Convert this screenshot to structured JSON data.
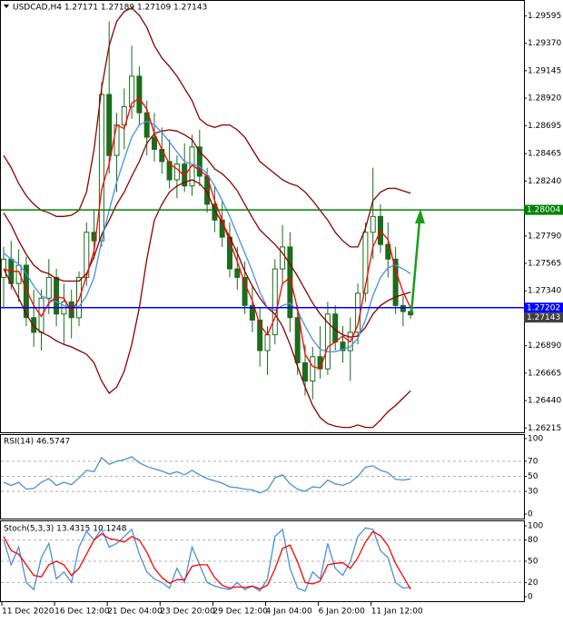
{
  "chart_data": [
    {
      "type": "candlestick",
      "title": "USDCAD,H4  1.27171 1.27189 1.27109 1.27143",
      "x": [
        "11 Dec 2020",
        null,
        null,
        null,
        null,
        null,
        null,
        "16 Dec 12:00",
        null,
        null,
        null,
        null,
        null,
        null,
        "21 Dec 04:00",
        null,
        null,
        null,
        null,
        null,
        null,
        "23 Dec 20:00",
        null,
        null,
        null,
        null,
        null,
        null,
        "29 Dec 12:00",
        null,
        null,
        null,
        null,
        null,
        null,
        "4 Jan 04:00",
        null,
        null,
        null,
        null,
        null,
        null,
        "6 Jan 20:00",
        null,
        null,
        null,
        null,
        null,
        null,
        "11 Jan 12:00",
        null,
        null,
        null,
        null,
        null
      ],
      "ohlc": [
        [
          1.2745,
          1.277,
          1.272,
          1.276
        ],
        [
          1.276,
          1.2775,
          1.2735,
          1.274
        ],
        [
          1.274,
          1.2768,
          1.2725,
          1.2755
        ],
        [
          1.2755,
          1.2762,
          1.2705,
          1.2712
        ],
        [
          1.2712,
          1.2735,
          1.2688,
          1.27
        ],
        [
          1.27,
          1.2735,
          1.2685,
          1.2728
        ],
        [
          1.2728,
          1.276,
          1.2715,
          1.2745
        ],
        [
          1.2745,
          1.2752,
          1.2705,
          1.2715
        ],
        [
          1.2715,
          1.274,
          1.269,
          1.2725
        ],
        [
          1.2725,
          1.2735,
          1.2695,
          1.2712
        ],
        [
          1.2712,
          1.275,
          1.2705,
          1.2745
        ],
        [
          1.2745,
          1.279,
          1.2738,
          1.2782
        ],
        [
          1.2782,
          1.28,
          1.276,
          1.2775
        ],
        [
          1.2775,
          1.2905,
          1.277,
          1.2895
        ],
        [
          1.2895,
          1.2955,
          1.283,
          1.2845
        ],
        [
          1.2845,
          1.288,
          1.2815,
          1.287
        ],
        [
          1.287,
          1.29,
          1.285,
          1.2885
        ],
        [
          1.2885,
          1.2935,
          1.2875,
          1.291
        ],
        [
          1.291,
          1.2918,
          1.287,
          1.288
        ],
        [
          1.288,
          1.289,
          1.2845,
          1.286
        ],
        [
          1.286,
          1.288,
          1.284,
          1.285
        ],
        [
          1.285,
          1.2868,
          1.283,
          1.284
        ],
        [
          1.284,
          1.2858,
          1.2818,
          1.2825
        ],
        [
          1.2825,
          1.2845,
          1.281,
          1.2838
        ],
        [
          1.2838,
          1.2855,
          1.2815,
          1.282
        ],
        [
          1.282,
          1.2862,
          1.2812,
          1.2852
        ],
        [
          1.2852,
          1.2866,
          1.282,
          1.2828
        ],
        [
          1.2828,
          1.2835,
          1.2798,
          1.2805
        ],
        [
          1.2805,
          1.282,
          1.2782,
          1.2792
        ],
        [
          1.2792,
          1.2808,
          1.277,
          1.2778
        ],
        [
          1.2778,
          1.279,
          1.2745,
          1.2752
        ],
        [
          1.2752,
          1.277,
          1.2735,
          1.2745
        ],
        [
          1.2745,
          1.2758,
          1.2715,
          1.2722
        ],
        [
          1.2722,
          1.2738,
          1.27,
          1.271
        ],
        [
          1.271,
          1.272,
          1.2672,
          1.2685
        ],
        [
          1.2685,
          1.2705,
          1.2665,
          1.2698
        ],
        [
          1.2698,
          1.276,
          1.269,
          1.2752
        ],
        [
          1.2752,
          1.2788,
          1.274,
          1.277
        ],
        [
          1.277,
          1.2782,
          1.27,
          1.2712
        ],
        [
          1.2712,
          1.2722,
          1.2665,
          1.2675
        ],
        [
          1.2675,
          1.269,
          1.2648,
          1.266
        ],
        [
          1.266,
          1.2688,
          1.2645,
          1.268
        ],
        [
          1.268,
          1.2705,
          1.2662,
          1.267
        ],
        [
          1.267,
          1.2725,
          1.2665,
          1.2715
        ],
        [
          1.2715,
          1.2722,
          1.2685,
          1.2692
        ],
        [
          1.2692,
          1.2705,
          1.2675,
          1.2685
        ],
        [
          1.2685,
          1.2712,
          1.266,
          1.27
        ],
        [
          1.27,
          1.274,
          1.269,
          1.2732
        ],
        [
          1.2732,
          1.279,
          1.2725,
          1.2782
        ],
        [
          1.2782,
          1.2835,
          1.276,
          1.2795
        ],
        [
          1.2795,
          1.2805,
          1.2765,
          1.2772
        ],
        [
          1.2772,
          1.279,
          1.2745,
          1.276
        ],
        [
          1.276,
          1.277,
          1.2715,
          1.2722
        ],
        [
          1.2722,
          1.273,
          1.2705,
          1.2717
        ],
        [
          1.27171,
          1.27189,
          1.27109,
          1.27143
        ]
      ],
      "candle_color": "#1d6b1d",
      "series": [
        {
          "color": "#8b0000",
          "values": [
            1.2845,
            1.2835,
            1.2822,
            1.2812,
            1.2805,
            1.28,
            1.2798,
            1.2795,
            1.2795,
            1.2796,
            1.28,
            1.2815,
            1.285,
            1.29,
            1.2935,
            1.2955,
            1.2963,
            1.2966,
            1.296,
            1.295,
            1.2935,
            1.2925,
            1.2918,
            1.291,
            1.29,
            1.289,
            1.2875,
            1.287,
            1.2868,
            1.287,
            1.287,
            1.2866,
            1.286,
            1.285,
            1.284,
            1.2835,
            1.283,
            1.2825,
            1.2822,
            1.282,
            1.2815,
            1.2808,
            1.28,
            1.2792,
            1.2782,
            1.2775,
            1.277,
            1.277,
            1.2785,
            1.2808,
            1.2815,
            1.2818,
            1.2818,
            1.2816,
            1.2814
          ]
        },
        {
          "color": "#8b0000",
          "values": [
            1.2798,
            1.2788,
            1.2775,
            1.2764,
            1.2755,
            1.275,
            1.2748,
            1.2744,
            1.2742,
            1.2742,
            1.2742,
            1.2748,
            1.2762,
            1.278,
            1.2792,
            1.2805,
            1.2815,
            1.2828,
            1.284,
            1.2855,
            1.2863,
            1.2865,
            1.2866,
            1.2865,
            1.2862,
            1.2858,
            1.2848,
            1.2842,
            1.2834,
            1.283,
            1.2824,
            1.2816,
            1.2805,
            1.2794,
            1.2784,
            1.2778,
            1.2772,
            1.2765,
            1.2756,
            1.2746,
            1.2735,
            1.2724,
            1.2715,
            1.2708,
            1.2702,
            1.2698,
            1.2696,
            1.2697,
            1.2704,
            1.2715,
            1.2722,
            1.2726,
            1.2729,
            1.2731,
            1.2733
          ]
        },
        {
          "color": "#8b0000",
          "values": [
            1.2752,
            1.274,
            1.2728,
            1.2715,
            1.2705,
            1.27,
            1.2697,
            1.2693,
            1.269,
            1.2688,
            1.2685,
            1.2682,
            1.2675,
            1.266,
            1.265,
            1.2655,
            1.2668,
            1.269,
            1.272,
            1.276,
            1.2792,
            1.2805,
            1.2815,
            1.282,
            1.2823,
            1.2825,
            1.2822,
            1.2815,
            1.28,
            1.279,
            1.2778,
            1.2765,
            1.275,
            1.2738,
            1.2728,
            1.272,
            1.2715,
            1.2705,
            1.269,
            1.2672,
            1.2655,
            1.264,
            1.263,
            1.2625,
            1.2623,
            1.2622,
            1.2622,
            1.2624,
            1.2622,
            1.2622,
            1.2628,
            1.2635,
            1.264,
            1.2646,
            1.2652
          ]
        },
        {
          "color": "#4a90e2",
          "values": [
            1.2765,
            1.276,
            1.2756,
            1.2748,
            1.2738,
            1.273,
            1.2727,
            1.2725,
            1.2722,
            1.272,
            1.2721,
            1.273,
            1.2745,
            1.2775,
            1.28,
            1.2823,
            1.2842,
            1.286,
            1.287,
            1.2873,
            1.287,
            1.2864,
            1.2856,
            1.2848,
            1.284,
            1.2838,
            1.2836,
            1.283,
            1.282,
            1.2808,
            1.2795,
            1.278,
            1.2765,
            1.275,
            1.2733,
            1.272,
            1.2718,
            1.2722,
            1.2724,
            1.2718,
            1.2705,
            1.2694,
            1.2686,
            1.2684,
            1.2684,
            1.2686,
            1.2688,
            1.2695,
            1.271,
            1.273,
            1.2745,
            1.2753,
            1.2755,
            1.2752,
            1.2748
          ]
        },
        {
          "color": "#ff0000",
          "values": [
            1.2752,
            1.275,
            1.275,
            1.2735,
            1.2722,
            1.2713,
            1.2724,
            1.2729,
            1.2728,
            1.2717,
            1.2727,
            1.2746,
            1.2767,
            1.2817,
            1.2838,
            1.287,
            1.2867,
            1.2888,
            1.2892,
            1.2883,
            1.2863,
            1.285,
            1.2838,
            1.2834,
            1.2828,
            1.2837,
            1.2833,
            1.2828,
            1.2808,
            1.2792,
            1.2774,
            1.2758,
            1.274,
            1.2726,
            1.2706,
            1.2698,
            1.2712,
            1.274,
            1.2745,
            1.2719,
            1.2682,
            1.2672,
            1.267,
            1.2688,
            1.2692,
            1.2697,
            1.2692,
            1.2706,
            1.2738,
            1.277,
            1.2783,
            1.2776,
            1.2751,
            1.2733,
            1.272
          ]
        }
      ],
      "levels": [
        {
          "value": 1.28004,
          "color": "#008000"
        },
        {
          "value": 1.27202,
          "color": "#0000ff"
        }
      ],
      "last_price_color": "#404040",
      "ylim": [
        1.2618,
        1.2971
      ],
      "yticks": [
        1.29595,
        {
          "value": 1.2937,
          "label": "1.29370"
        },
        1.29145,
        {
          "value": 1.2892,
          "label": "1.28920"
        },
        1.28695,
        1.28465,
        {
          "value": 1.2824,
          "label": "1.28240"
        },
        {
          "value": 1.2779,
          "label": "1.27790"
        },
        1.27565,
        {
          "value": 1.2734,
          "label": "1.27340"
        },
        {
          "value": 1.2689,
          "label": "1.26890"
        },
        1.26665,
        {
          "value": 1.2644,
          "label": "1.26440"
        },
        1.26215
      ],
      "grid": false
    },
    {
      "type": "line",
      "title": "RSI(14) 46.5747",
      "series": [
        {
          "color": "#4a8fdc",
          "values": [
            42,
            38,
            42,
            33,
            34,
            42,
            47,
            38,
            42,
            39,
            48,
            58,
            56,
            75,
            66,
            70,
            72,
            76,
            68,
            63,
            60,
            57,
            53,
            56,
            52,
            58,
            52,
            47,
            44,
            41,
            36,
            35,
            33,
            32,
            28,
            32,
            48,
            52,
            40,
            33,
            30,
            36,
            35,
            45,
            40,
            38,
            42,
            50,
            62,
            64,
            58,
            55,
            46,
            45,
            46.5747
          ]
        }
      ],
      "ylim": [
        0,
        100
      ],
      "yticks": [
        0,
        30,
        50,
        70,
        100
      ],
      "grid": true
    },
    {
      "type": "line",
      "title": "Stoch(5,3,3) 13.4315 10.1248",
      "series": [
        {
          "color": "#4a8fdc",
          "values": [
            80,
            45,
            70,
            20,
            10,
            55,
            75,
            25,
            35,
            20,
            70,
            92,
            80,
            96,
            70,
            75,
            85,
            95,
            60,
            35,
            25,
            20,
            12,
            40,
            20,
            70,
            45,
            20,
            15,
            12,
            10,
            20,
            10,
            15,
            8,
            25,
            85,
            95,
            40,
            12,
            8,
            35,
            25,
            75,
            40,
            30,
            50,
            85,
            97,
            95,
            65,
            55,
            20,
            12,
            13.4315
          ]
        },
        {
          "color": "#ff0000",
          "values": [
            85,
            65,
            60,
            45,
            30,
            28,
            45,
            50,
            45,
            30,
            40,
            60,
            80,
            89,
            82,
            80,
            77,
            85,
            80,
            63,
            40,
            27,
            19,
            24,
            24,
            43,
            45,
            45,
            27,
            16,
            12,
            14,
            13,
            15,
            11,
            16,
            39,
            68,
            73,
            49,
            20,
            18,
            22,
            45,
            47,
            48,
            40,
            55,
            77,
            92,
            86,
            72,
            47,
            29,
            10.1248
          ]
        }
      ],
      "ylim": [
        0,
        100
      ],
      "yticks": [
        0,
        20,
        50,
        80,
        100
      ],
      "grid": true
    }
  ]
}
